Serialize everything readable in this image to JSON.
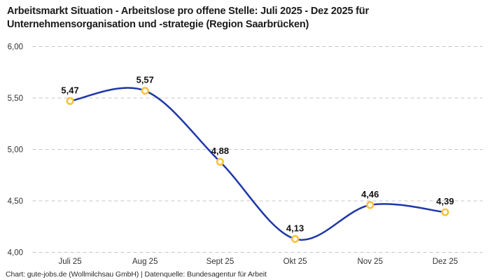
{
  "header": {
    "title_line1": "Arbeitsmarkt Situation - Arbeitslose pro offene Stelle: Juli 2025 - Dez 2025 für",
    "title_line2": "Unternehmensorganisation und -strategie (Region Saarbrücken)"
  },
  "chart_data": {
    "type": "line",
    "title": "Arbeitsmarkt Situation - Arbeitslose pro offene Stelle: Juli 2025 - Dez 2025 für Unternehmensorganisation und -strategie (Region Saarbrücken)",
    "categories": [
      "Juli 25",
      "Aug 25",
      "Sept 25",
      "Okt 25",
      "Nov 25",
      "Dez 25"
    ],
    "values": [
      5.47,
      5.57,
      4.88,
      4.13,
      4.46,
      4.39
    ],
    "value_labels": [
      "5,47",
      "5,57",
      "4,88",
      "4,13",
      "4,46",
      "4,39"
    ],
    "yticks": [
      {
        "value": 4.0,
        "label": "4,00"
      },
      {
        "value": 4.5,
        "label": "4,50"
      },
      {
        "value": 5.0,
        "label": "5,00"
      },
      {
        "value": 5.5,
        "label": "5,50"
      },
      {
        "value": 6.0,
        "label": "6,00"
      }
    ],
    "ylim": [
      4.0,
      6.0
    ],
    "xlabel": "",
    "ylabel": "",
    "grid": "horizontal-dashed",
    "legend": "none",
    "line_style": "smooth",
    "marker": "open-circle"
  },
  "footer": {
    "credit": "Chart: gute-jobs.de (Wollmilchsau GmbH) | Datenquelle: Bundesagentur für Arbeit"
  },
  "colors": {
    "line": "#1e37a8",
    "marker_stroke": "#f7c33e",
    "marker_fill": "#ffffff",
    "gridline": "#c6c6c6",
    "title_text": "#1a1a1a",
    "axis_text": "#333333",
    "background": "#ffffff"
  }
}
